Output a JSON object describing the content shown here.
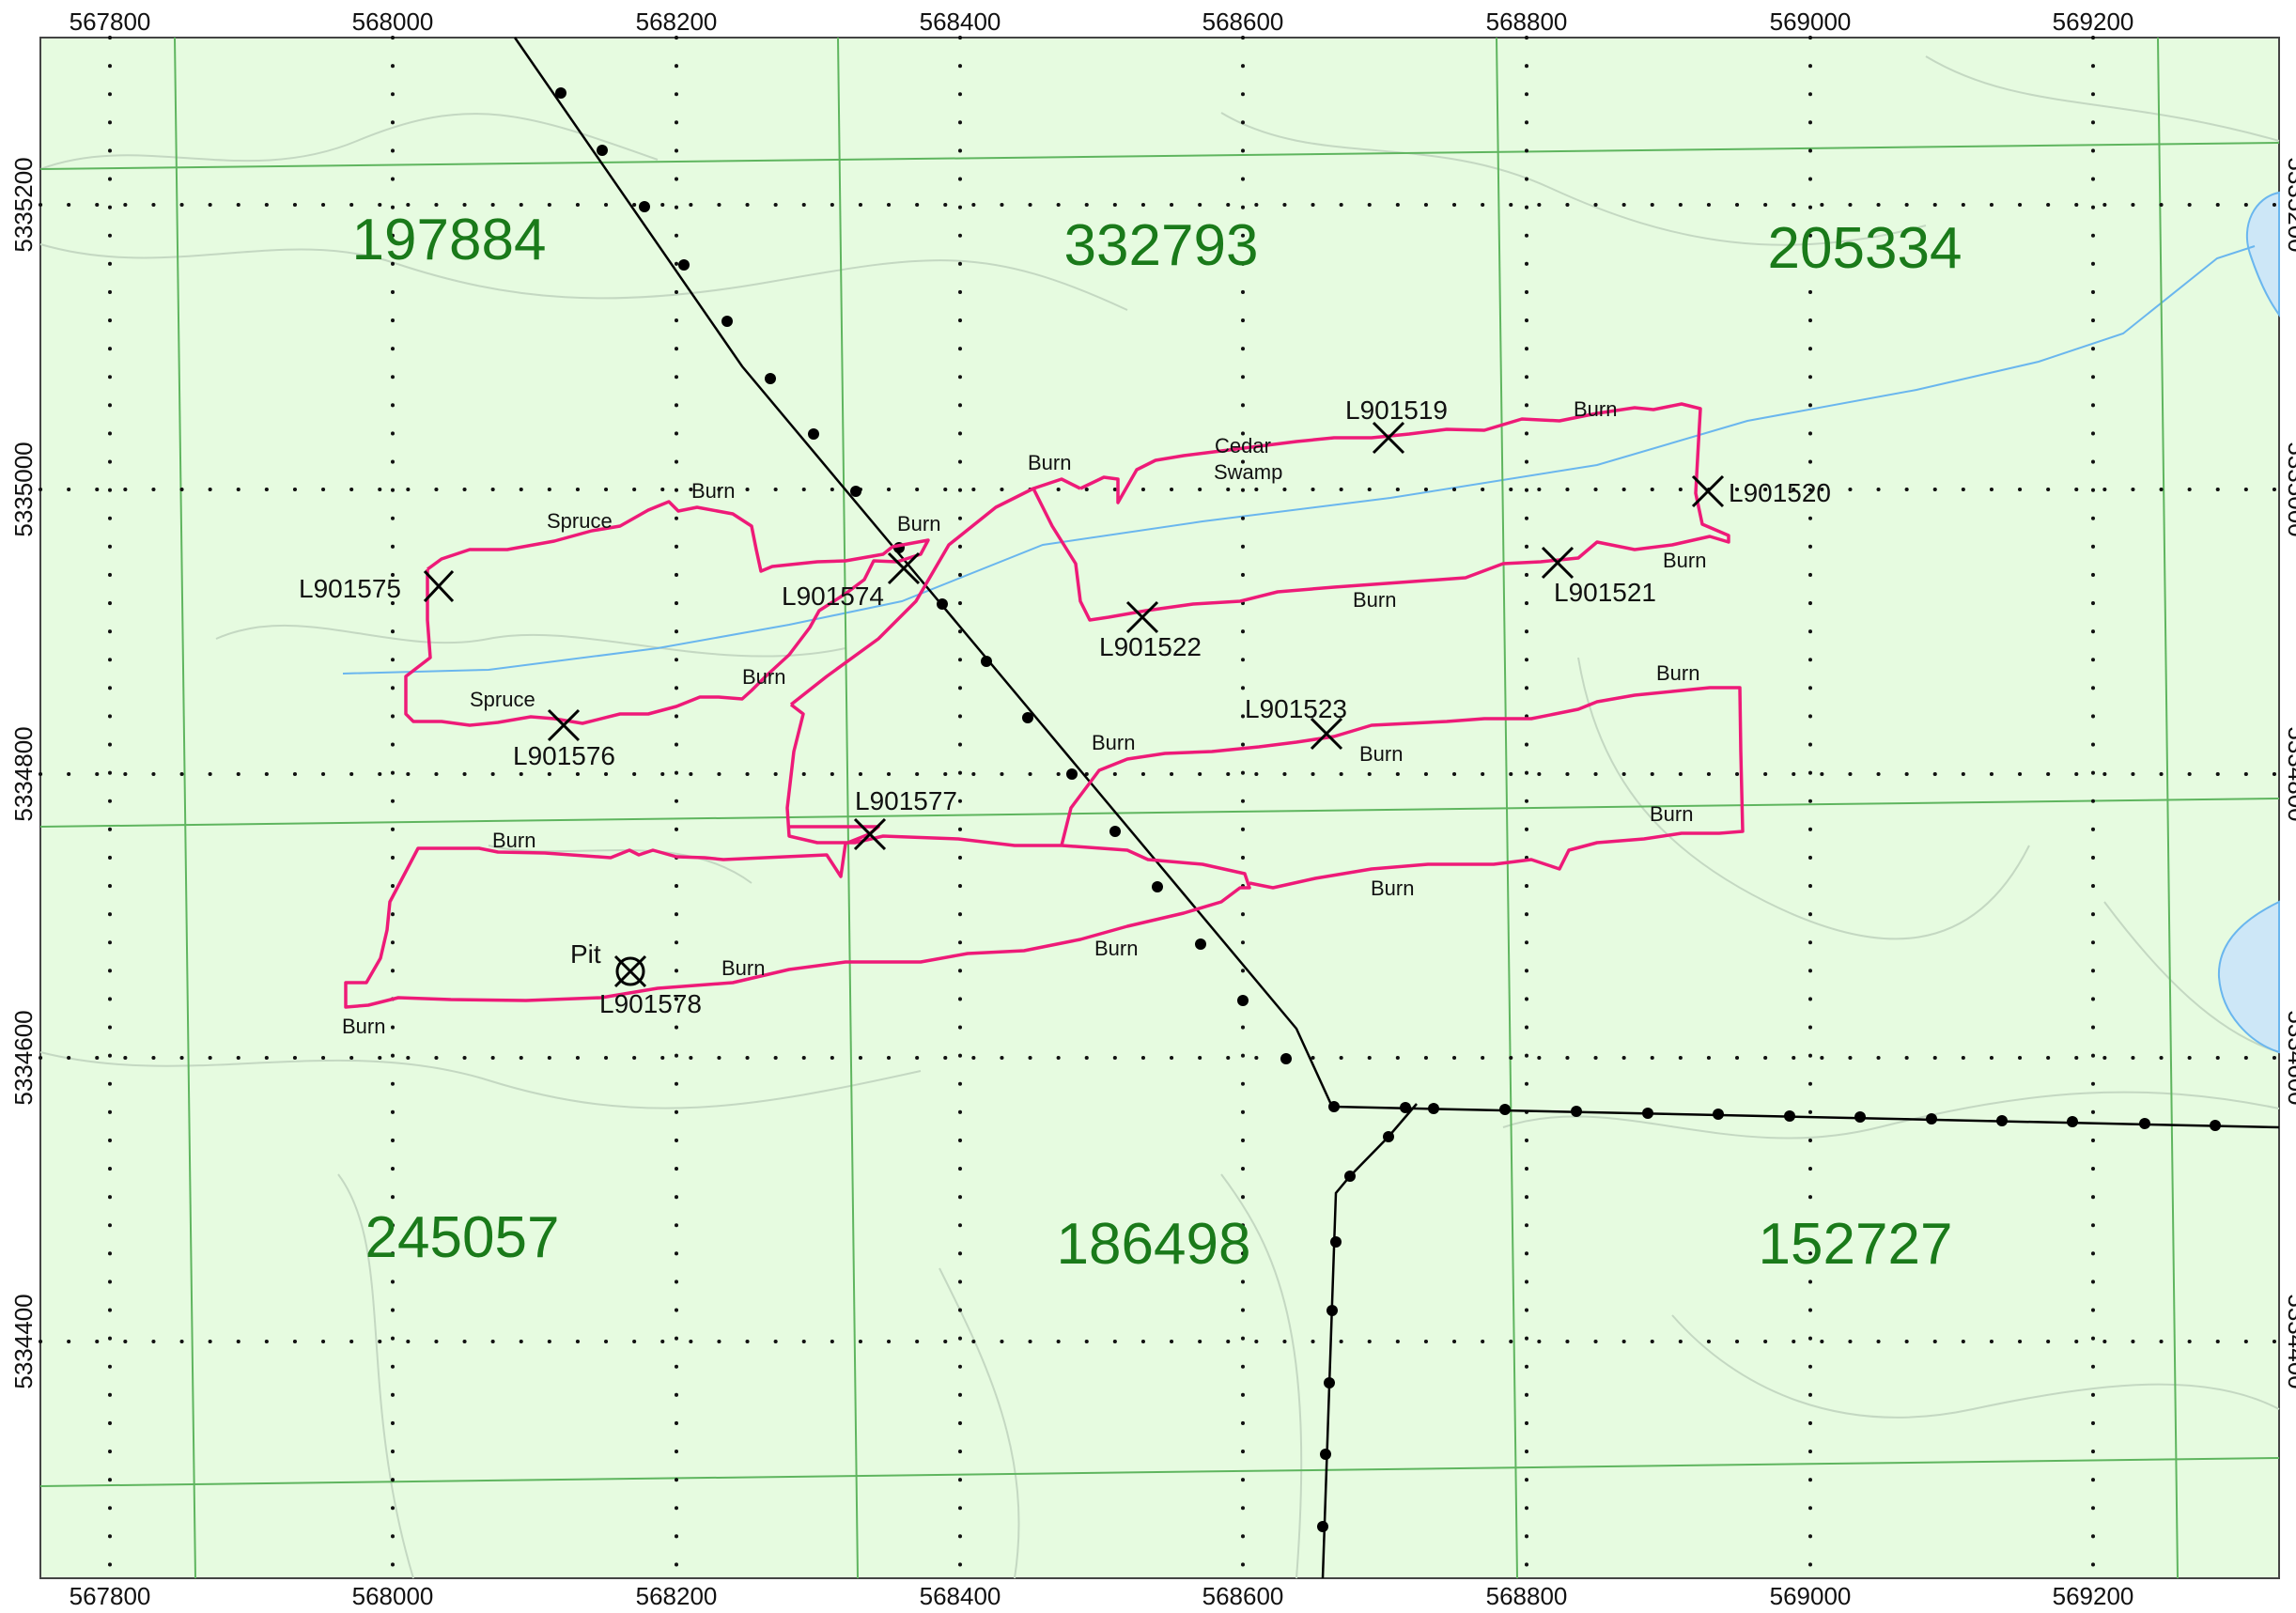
{
  "map": {
    "x_axis_ticks": [
      "567800",
      "568000",
      "568200",
      "568400",
      "568600",
      "568800",
      "569000",
      "569200"
    ],
    "y_axis_ticks": [
      "5335200",
      "5335000",
      "5334800",
      "5334600",
      "5334400"
    ],
    "claims": [
      "197884",
      "332793",
      "205334",
      "245057",
      "186498",
      "152727"
    ],
    "sample_labels": {
      "l901575": "L901575",
      "l901574": "L901574",
      "l901519": "L901519",
      "l901520": "L901520",
      "l901521": "L901521",
      "l901522": "L901522",
      "l901576": "L901576",
      "l901523": "L901523",
      "l901577": "L901577",
      "l901578": "L901578"
    },
    "annotations": {
      "spruce": "Spruce",
      "burn": "Burn",
      "cedar": "Cedar",
      "swamp": "Swamp",
      "pit": "Pit"
    },
    "colors": {
      "background": "#e6fbe0",
      "traverse": "#ee1a78",
      "grid_line": "#5fb55f",
      "claim_text": "#1a7a1a",
      "water": "#cde7f7",
      "stream": "#6ab6ee",
      "contour": "#c4d8c2",
      "road": "#000000"
    }
  }
}
